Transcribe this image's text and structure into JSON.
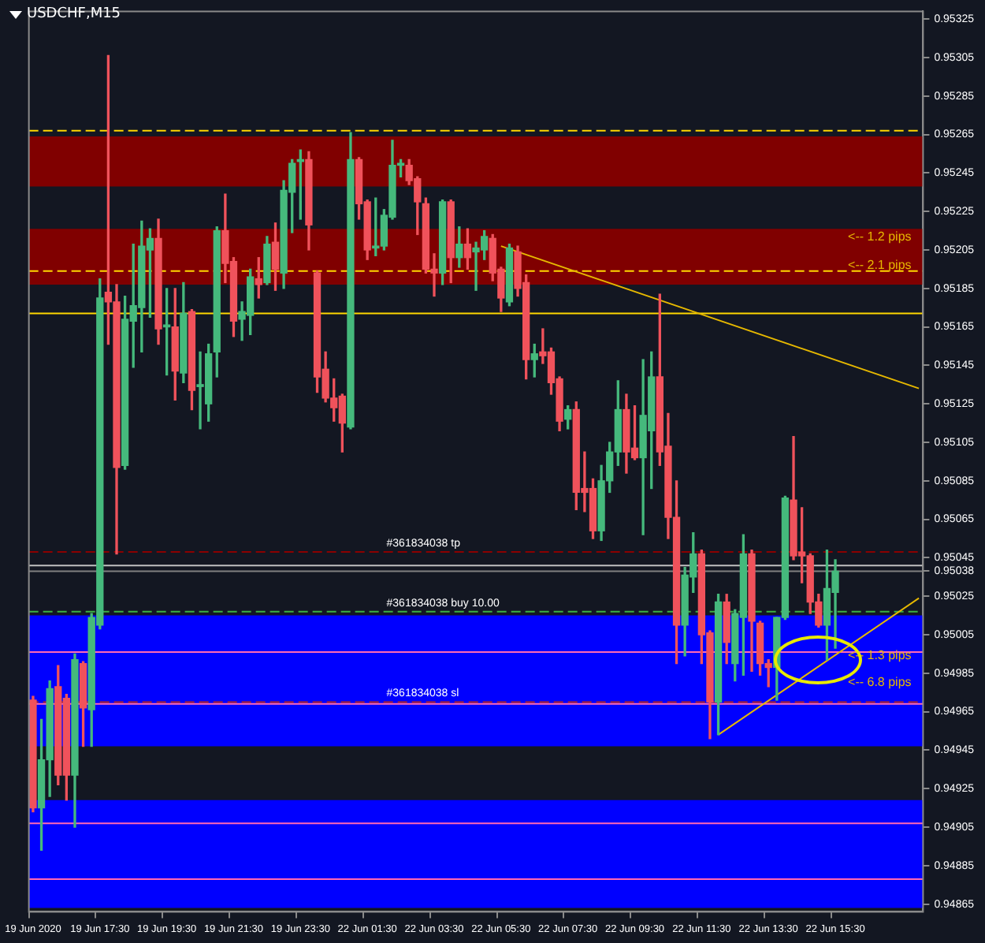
{
  "chart_data": {
    "type": "candlestick",
    "title": "USDCHF,M15",
    "categories": [
      "19 Jun 2020",
      null,
      null,
      null,
      null,
      null,
      null,
      null,
      "19 Jun 17:30",
      null,
      null,
      null,
      null,
      null,
      null,
      null,
      "19 Jun 19:30",
      null,
      null,
      null,
      null,
      null,
      null,
      null,
      "19 Jun 21:30",
      null,
      null,
      null,
      null,
      null,
      null,
      null,
      "19 Jun 23:30",
      null,
      null,
      null,
      null,
      null,
      null,
      null,
      "22 Jun 01:30",
      null,
      null,
      null,
      null,
      null,
      null,
      null,
      "22 Jun 03:30",
      null,
      null,
      null,
      null,
      null,
      null,
      null,
      "22 Jun 05:30",
      null,
      null,
      null,
      null,
      null,
      null,
      null,
      "22 Jun 07:30",
      null,
      null,
      null,
      null,
      null,
      null,
      null,
      "22 Jun 09:30",
      null,
      null,
      null,
      null,
      null,
      null,
      null,
      "22 Jun 11:30",
      null,
      null,
      null,
      null,
      null,
      null,
      null,
      "22 Jun 13:30",
      null,
      null,
      null,
      null,
      null,
      null,
      null,
      "22 Jun 15:30",
      null,
      null,
      null,
      null,
      null,
      null,
      null,
      null,
      null,
      null
    ],
    "ohlc": [
      [
        0.94971,
        0.94973,
        0.94913,
        0.94915
      ],
      [
        0.94915,
        0.94961,
        0.94893,
        0.9494
      ],
      [
        0.9494,
        0.94981,
        0.94921,
        0.94977
      ],
      [
        0.94978,
        0.94989,
        0.94927,
        0.94932
      ],
      [
        0.94972,
        0.94974,
        0.94919,
        0.94932
      ],
      [
        0.94932,
        0.94995,
        0.94905,
        0.94992
      ],
      [
        0.9499,
        0.94991,
        0.94947,
        0.94967
      ],
      [
        0.94966,
        0.95016,
        0.94947,
        0.95014
      ],
      [
        0.9501,
        0.9519,
        0.95008,
        0.9518
      ],
      [
        0.95183,
        0.95306,
        0.95156,
        0.95178
      ],
      [
        0.95178,
        0.95187,
        0.95047,
        0.95092
      ],
      [
        0.95093,
        0.95181,
        0.95091,
        0.95169
      ],
      [
        0.95168,
        0.95208,
        0.95144,
        0.95176
      ],
      [
        0.95175,
        0.9522,
        0.95152,
        0.95207
      ],
      [
        0.95205,
        0.95216,
        0.9517,
        0.95211
      ],
      [
        0.95211,
        0.95221,
        0.95156,
        0.95164
      ],
      [
        0.95165,
        0.95185,
        0.9514,
        0.95166
      ],
      [
        0.95165,
        0.95185,
        0.95127,
        0.95142
      ],
      [
        0.95141,
        0.95188,
        0.95136,
        0.95172
      ],
      [
        0.95173,
        0.95174,
        0.95122,
        0.95132
      ],
      [
        0.95134,
        0.95152,
        0.95112,
        0.95135
      ],
      [
        0.95125,
        0.95156,
        0.95116,
        0.95151
      ],
      [
        0.95152,
        0.95217,
        0.95139,
        0.95215
      ],
      [
        0.95215,
        0.95234,
        0.95188,
        0.95198
      ],
      [
        0.95199,
        0.95201,
        0.9516,
        0.95168
      ],
      [
        0.95169,
        0.95178,
        0.95158,
        0.95173
      ],
      [
        0.95171,
        0.95195,
        0.95161,
        0.95191
      ],
      [
        0.9519,
        0.95201,
        0.9518,
        0.95187
      ],
      [
        0.95188,
        0.95212,
        0.95187,
        0.95208
      ],
      [
        0.95209,
        0.95219,
        0.95184,
        0.95195
      ],
      [
        0.95193,
        0.95241,
        0.95185,
        0.95236
      ],
      [
        0.95235,
        0.95252,
        0.95214,
        0.9525
      ],
      [
        0.95251,
        0.95257,
        0.95221,
        0.95252
      ],
      [
        0.95252,
        0.95256,
        0.95205,
        0.95218
      ],
      [
        0.95193,
        0.95194,
        0.95131,
        0.95139
      ],
      [
        0.95143,
        0.95152,
        0.95126,
        0.95128
      ],
      [
        0.95128,
        0.95138,
        0.95116,
        0.95123
      ],
      [
        0.95129,
        0.9513,
        0.951,
        0.95115
      ],
      [
        0.95113,
        0.95266,
        0.95112,
        0.95252
      ],
      [
        0.95252,
        0.95253,
        0.95221,
        0.95229
      ],
      [
        0.9523,
        0.95231,
        0.952,
        0.95205
      ],
      [
        0.95206,
        0.95232,
        0.95202,
        0.95207
      ],
      [
        0.95207,
        0.95226,
        0.95205,
        0.95223
      ],
      [
        0.95222,
        0.95262,
        0.95221,
        0.95249
      ],
      [
        0.95249,
        0.95252,
        0.95243,
        0.9525
      ],
      [
        0.95249,
        0.95252,
        0.95239,
        0.95241
      ],
      [
        0.95242,
        0.95243,
        0.95213,
        0.9523
      ],
      [
        0.95229,
        0.95232,
        0.95193,
        0.95195
      ],
      [
        0.95195,
        0.95203,
        0.95181,
        0.95193
      ],
      [
        0.95193,
        0.95231,
        0.95187,
        0.9523
      ],
      [
        0.9523,
        0.95231,
        0.95188,
        0.95201
      ],
      [
        0.95201,
        0.95217,
        0.95196,
        0.95208
      ],
      [
        0.95208,
        0.95216,
        0.95195,
        0.95201
      ],
      [
        0.95204,
        0.95209,
        0.95184,
        0.95206
      ],
      [
        0.95205,
        0.95215,
        0.952,
        0.95212
      ],
      [
        0.95211,
        0.95213,
        0.95189,
        0.95193
      ],
      [
        0.95195,
        0.95196,
        0.95173,
        0.9518
      ],
      [
        0.95178,
        0.95208,
        0.95176,
        0.95206
      ],
      [
        0.95204,
        0.95207,
        0.95181,
        0.95185
      ],
      [
        0.95188,
        0.95192,
        0.95138,
        0.95148
      ],
      [
        0.95148,
        0.95156,
        0.95139,
        0.95151
      ],
      [
        0.95152,
        0.95164,
        0.95146,
        0.9515
      ],
      [
        0.95152,
        0.95154,
        0.9513,
        0.95136
      ],
      [
        0.95138,
        0.95139,
        0.95111,
        0.95116
      ],
      [
        0.95117,
        0.95124,
        0.95112,
        0.95122
      ],
      [
        0.95122,
        0.95126,
        0.9507,
        0.95079
      ],
      [
        0.95081,
        0.951,
        0.95069,
        0.95079
      ],
      [
        0.95081,
        0.95086,
        0.95055,
        0.95059
      ],
      [
        0.95059,
        0.95093,
        0.95054,
        0.95085
      ],
      [
        0.95085,
        0.95105,
        0.95079,
        0.951
      ],
      [
        0.951,
        0.95137,
        0.95093,
        0.95122
      ],
      [
        0.95122,
        0.9513,
        0.95089,
        0.951
      ],
      [
        0.95102,
        0.95124,
        0.95096,
        0.95097
      ],
      [
        0.95097,
        0.95148,
        0.95057,
        0.95119
      ],
      [
        0.95111,
        0.95152,
        0.95081,
        0.95139
      ],
      [
        0.95139,
        0.95182,
        0.95093,
        0.951
      ],
      [
        0.95103,
        0.9512,
        0.95055,
        0.95066
      ],
      [
        0.95066,
        0.95085,
        0.9499,
        0.9501
      ],
      [
        0.9501,
        0.9504,
        0.94994,
        0.95036
      ],
      [
        0.95035,
        0.95058,
        0.95027,
        0.95047
      ],
      [
        0.95047,
        0.95049,
        0.9499,
        0.95005
      ],
      [
        0.95006,
        0.95007,
        0.94951,
        0.9497
      ],
      [
        0.9497,
        0.95026,
        0.94953,
        0.95022
      ],
      [
        0.95022,
        0.95026,
        0.9499,
        0.95001
      ],
      [
        0.9499,
        0.95018,
        0.94981,
        0.95016
      ],
      [
        0.95014,
        0.95057,
        0.94984,
        0.95047
      ],
      [
        0.95047,
        0.95049,
        0.94986,
        0.95012
      ],
      [
        0.95011,
        0.95012,
        0.94984,
        0.9499
      ],
      [
        0.9499,
        0.94992,
        0.94978,
        0.94988
      ],
      [
        0.94988,
        0.95014,
        0.94971,
        0.95014
      ],
      [
        0.95014,
        0.95077,
        0.95013,
        0.95076
      ],
      [
        0.95075,
        0.95108,
        0.95044,
        0.95046
      ],
      [
        0.95048,
        0.95071,
        0.95032,
        0.95046
      ],
      [
        0.95046,
        0.95047,
        0.95016,
        0.95022
      ],
      [
        0.95022,
        0.95026,
        0.95009,
        0.9501
      ],
      [
        0.9501,
        0.95049,
        0.94992,
        0.95029
      ],
      [
        0.95027,
        0.95044,
        0.94998,
        0.95038
      ],
      null,
      null,
      null,
      null,
      null,
      null,
      null,
      null,
      null,
      null
    ],
    "series": [
      {
        "type": "line",
        "color": "#e6b800",
        "values": [
          null,
          null,
          null,
          null,
          null,
          null,
          null,
          null,
          null,
          null,
          null,
          null,
          null,
          null,
          null,
          null,
          null,
          null,
          null,
          null,
          null,
          null,
          null,
          null,
          null,
          null,
          null,
          null,
          null,
          null,
          null,
          null,
          null,
          null,
          null,
          null,
          null,
          null,
          null,
          null,
          null,
          null,
          null,
          null,
          null,
          null,
          null,
          null,
          null,
          null,
          null,
          null,
          null,
          null,
          null,
          null,
          0.95207,
          null,
          null,
          null,
          null,
          null,
          null,
          null,
          null,
          null,
          null,
          null,
          null,
          null,
          null,
          null,
          null,
          null,
          null,
          null,
          null,
          null,
          null,
          null,
          null,
          null,
          null,
          null,
          null,
          null,
          null,
          null,
          null,
          null,
          null,
          null,
          null,
          null,
          null,
          null,
          null,
          null,
          null,
          null,
          null,
          null,
          null,
          null,
          null,
          null,
          0.95133
        ]
      },
      {
        "type": "line",
        "color": "#e6b800",
        "values": [
          null,
          null,
          null,
          null,
          null,
          null,
          null,
          null,
          null,
          null,
          null,
          null,
          null,
          null,
          null,
          null,
          null,
          null,
          null,
          null,
          null,
          null,
          null,
          null,
          null,
          null,
          null,
          null,
          null,
          null,
          null,
          null,
          null,
          null,
          null,
          null,
          null,
          null,
          null,
          null,
          null,
          null,
          null,
          null,
          null,
          null,
          null,
          null,
          null,
          null,
          null,
          null,
          null,
          null,
          null,
          null,
          null,
          null,
          null,
          null,
          null,
          null,
          null,
          null,
          null,
          null,
          null,
          null,
          null,
          null,
          null,
          null,
          null,
          null,
          null,
          null,
          null,
          null,
          null,
          null,
          null,
          null,
          0.94953,
          null,
          null,
          null,
          null,
          null,
          null,
          null,
          null,
          null,
          null,
          null,
          null,
          null,
          null,
          null,
          null,
          null,
          null,
          null,
          null,
          null,
          null,
          null,
          0.95024
        ]
      }
    ],
    "ylim": [
      0.94861,
      0.95329
    ],
    "yticks": [
      0.95325,
      0.95305,
      0.95285,
      0.95265,
      0.95245,
      0.95225,
      0.95205,
      0.95185,
      0.95165,
      0.95145,
      0.95125,
      0.95105,
      0.95085,
      0.95065,
      0.95045,
      0.95038,
      0.95025,
      0.95005,
      0.94985,
      0.94965,
      0.94945,
      0.94925,
      0.94905,
      0.94885,
      0.94865
    ],
    "grid": false,
    "legend": false,
    "bands": [
      {
        "axis": "y",
        "from": 0.95238,
        "to": 0.95264,
        "color": "#800000"
      },
      {
        "axis": "y",
        "from": 0.95187,
        "to": 0.95216,
        "color": "#800000"
      },
      {
        "axis": "y",
        "from": 0.94947,
        "to": 0.95015,
        "color": "#0000ff"
      },
      {
        "axis": "y",
        "from": 0.94863,
        "to": 0.94919,
        "color": "#0000ff"
      }
    ],
    "ref_lines": [
      {
        "axis": "y",
        "value": 0.95267,
        "color": "#ffd700",
        "line_style": "dashed"
      },
      {
        "axis": "y",
        "value": 0.95194,
        "color": "#ffd700",
        "line_style": "dashed"
      },
      {
        "axis": "y",
        "value": 0.95172,
        "color": "#ffd700",
        "line_style": "solid"
      },
      {
        "axis": "y",
        "value": 0.95048,
        "color": "#8b0000",
        "line_style": "dashed",
        "label": "#361834038 tp"
      },
      {
        "axis": "y",
        "value": 0.95041,
        "color": "#c0c0c0",
        "line_style": "solid"
      },
      {
        "axis": "y",
        "value": 0.95038,
        "color": "#808080",
        "line_style": "solid"
      },
      {
        "axis": "y",
        "value": 0.95017,
        "color": "#3cb043",
        "line_style": "dashed",
        "label": "#361834038 buy 10.00"
      },
      {
        "axis": "y",
        "value": 0.94996,
        "color": "#ff69b4",
        "line_style": "solid"
      },
      {
        "axis": "y",
        "value": 0.9497,
        "color": "#b22222",
        "line_style": "dashed",
        "label": "#361834038 sl"
      },
      {
        "axis": "y",
        "value": 0.94969,
        "color": "#ff69b4",
        "line_style": "solid"
      },
      {
        "axis": "y",
        "value": 0.94907,
        "color": "#ff69b4",
        "line_style": "solid"
      },
      {
        "axis": "y",
        "value": 0.94878,
        "color": "#ff69b4",
        "line_style": "solid"
      }
    ],
    "annotations": [
      "<-- 1.2 pips",
      "<-- 2.1 pips",
      "<-- 1.3 pips",
      "<-- 6.8 pips"
    ]
  }
}
